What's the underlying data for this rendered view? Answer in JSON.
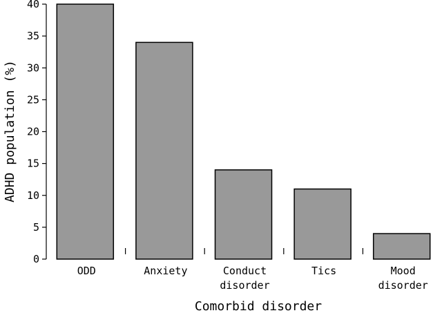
{
  "chart_data": {
    "type": "bar",
    "categories": [
      [
        "ODD"
      ],
      [
        "Anxiety"
      ],
      [
        "Conduct",
        "disorder"
      ],
      [
        "Tics"
      ],
      [
        "Mood",
        "disorder"
      ]
    ],
    "values": [
      40,
      34,
      14,
      11,
      4
    ],
    "xlabel": "Comorbid disorder",
    "ylabel": "ADHD population (%)",
    "ylim": [
      0,
      40
    ],
    "yticks": [
      0,
      5,
      10,
      15,
      20,
      25,
      30,
      35,
      40
    ],
    "grid": false,
    "legend": "none",
    "colors": {
      "bar_fill": "#999999",
      "bar_stroke": "#000000",
      "axis": "#000000"
    }
  }
}
